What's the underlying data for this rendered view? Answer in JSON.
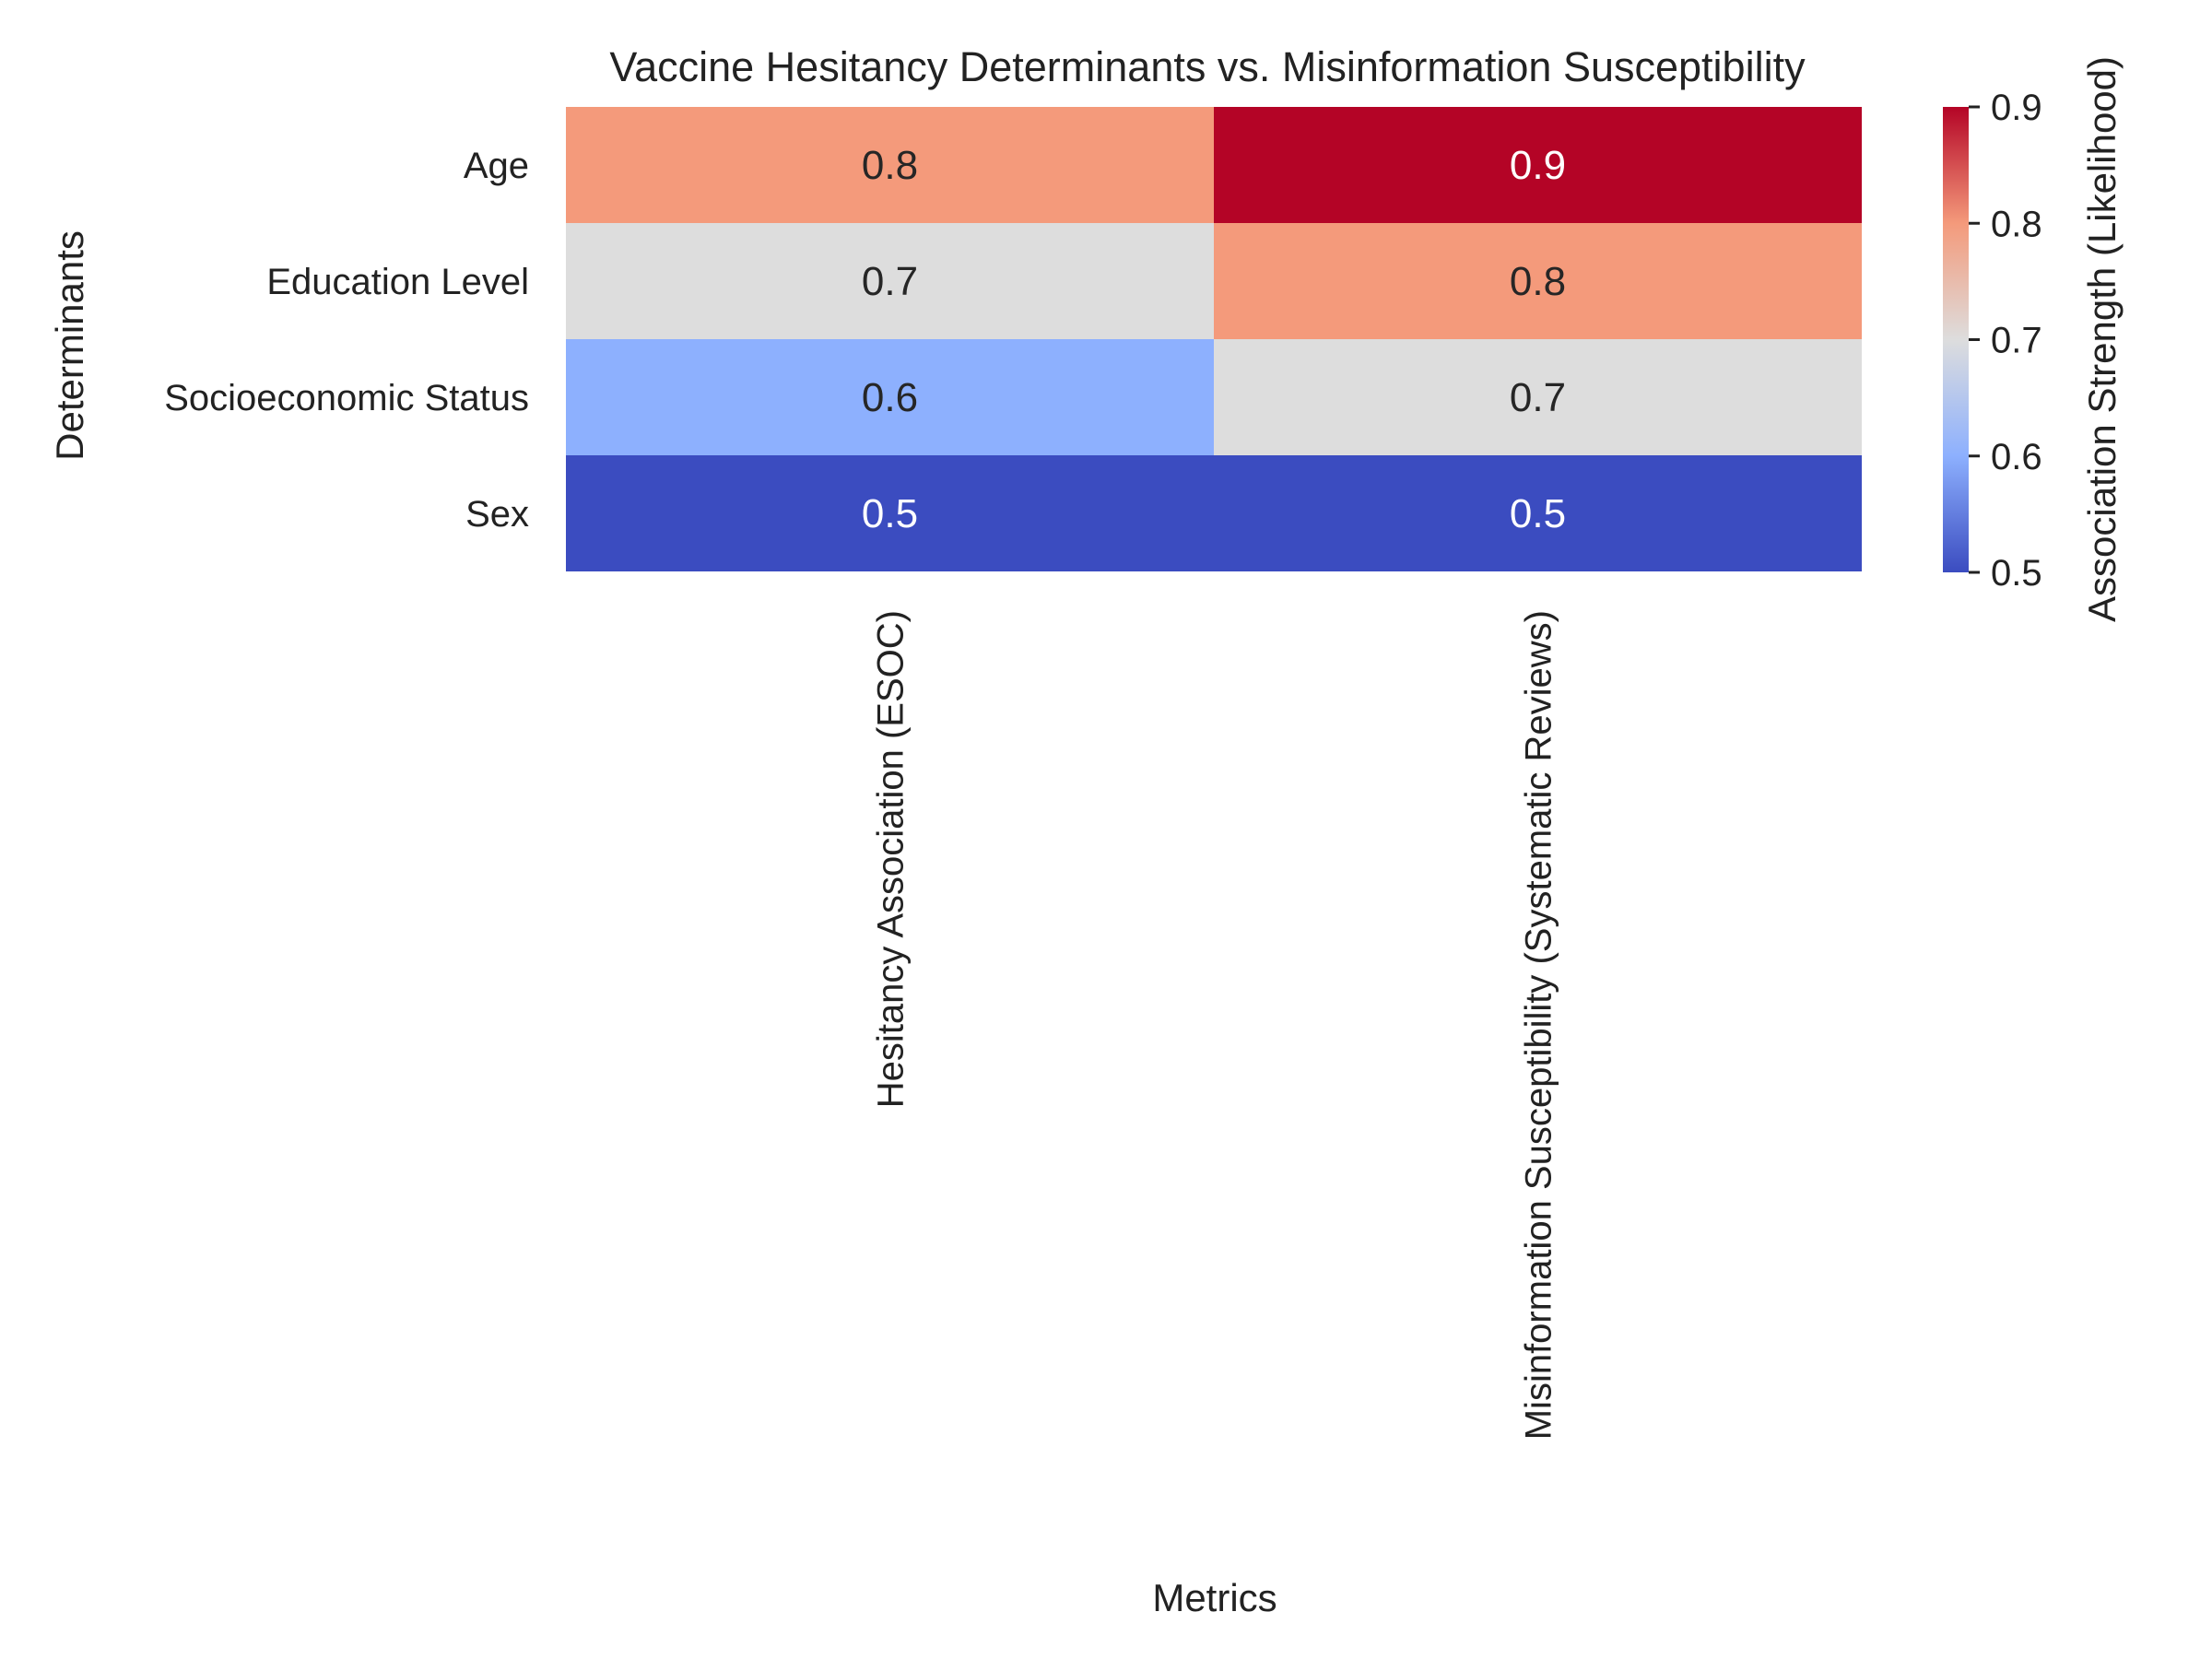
{
  "chart_data": {
    "type": "heatmap",
    "title": "Vaccine Hesitancy Determinants vs. Misinformation Susceptibility",
    "xlabel": "Metrics",
    "ylabel": "Determinants",
    "columns": [
      "Hesitancy Association (ESOC)",
      "Misinformation Susceptibility (Systematic Reviews)"
    ],
    "rows": [
      "Age",
      "Education Level",
      "Socioeconomic Status",
      "Sex"
    ],
    "values": [
      [
        0.8,
        0.9
      ],
      [
        0.7,
        0.8
      ],
      [
        0.6,
        0.7
      ],
      [
        0.5,
        0.5
      ]
    ],
    "colormap": "coolwarm",
    "colorbar": {
      "label": "Association Strength (Likelihood)",
      "min": 0.5,
      "max": 0.9,
      "ticks": [
        "0.5",
        "0.6",
        "0.7",
        "0.8",
        "0.9"
      ]
    },
    "annotations": true,
    "grid": false
  }
}
